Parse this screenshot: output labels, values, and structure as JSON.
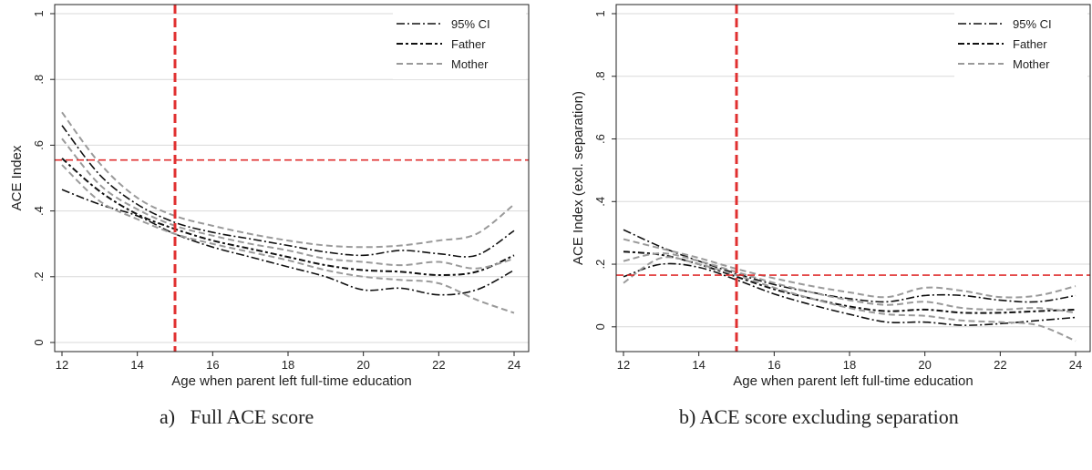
{
  "captions": [
    "a)   Full ACE score",
    "b) ACE score excluding separation"
  ],
  "legend_styles": {
    "95% CI": "dashdot",
    "Father": "dashdot-heavy",
    "Mother": "dashed"
  },
  "colors": {
    "black": "#111111",
    "gray": "#9a9a9a",
    "reference": "#e03030"
  },
  "chart_data": [
    {
      "type": "line",
      "xlabel": "Age when parent left full-time education",
      "ylabel": "ACE Index",
      "xlim": [
        12,
        24
      ],
      "ylim": [
        0,
        1
      ],
      "xticks": [
        12,
        14,
        16,
        18,
        20,
        22,
        24
      ],
      "xtick_labels": [
        "12",
        "14",
        "16",
        "18",
        "20",
        "22",
        "24"
      ],
      "yticks": [
        0,
        0.2,
        0.4,
        0.6,
        0.8,
        1
      ],
      "ytick_labels": [
        "0",
        ".2",
        ".4",
        ".6",
        ".8",
        "1"
      ],
      "grid": true,
      "legend": [
        "95% CI",
        "Father",
        "Mother"
      ],
      "legend_position": "top-right",
      "vline": 15,
      "hline": 0.555,
      "x": [
        12,
        13,
        14,
        15,
        16,
        17,
        18,
        19,
        20,
        21,
        22,
        23,
        24
      ],
      "series": [
        {
          "name": "Father",
          "style": "father",
          "values": [
            0.56,
            0.46,
            0.39,
            0.345,
            0.31,
            0.285,
            0.26,
            0.235,
            0.22,
            0.215,
            0.205,
            0.215,
            0.265
          ]
        },
        {
          "name": "95% CI",
          "style": "ci",
          "values": [
            0.66,
            0.51,
            0.42,
            0.365,
            0.335,
            0.315,
            0.295,
            0.275,
            0.265,
            0.28,
            0.27,
            0.265,
            0.34
          ]
        },
        {
          "name": "95% CI",
          "style": "ci",
          "values": [
            0.465,
            0.42,
            0.385,
            0.33,
            0.29,
            0.26,
            0.23,
            0.2,
            0.16,
            0.165,
            0.145,
            0.16,
            0.22
          ]
        },
        {
          "name": "Mother",
          "style": "mother",
          "values": [
            0.62,
            0.48,
            0.405,
            0.355,
            0.325,
            0.3,
            0.28,
            0.255,
            0.245,
            0.235,
            0.245,
            0.225,
            0.255
          ]
        },
        {
          "name": "95% CI",
          "style": "mother",
          "values": [
            0.7,
            0.545,
            0.44,
            0.385,
            0.355,
            0.33,
            0.31,
            0.295,
            0.29,
            0.295,
            0.31,
            0.33,
            0.42
          ]
        },
        {
          "name": "95% CI",
          "style": "mother",
          "values": [
            0.54,
            0.43,
            0.375,
            0.33,
            0.3,
            0.275,
            0.25,
            0.22,
            0.2,
            0.19,
            0.18,
            0.13,
            0.09
          ]
        }
      ]
    },
    {
      "type": "line",
      "xlabel": "Age when parent left full-time education",
      "ylabel": "ACE Index (excl. separation)",
      "xlim": [
        12,
        24
      ],
      "ylim": [
        -0.05,
        1
      ],
      "xticks": [
        12,
        14,
        16,
        18,
        20,
        22,
        24
      ],
      "xtick_labels": [
        "12",
        "14",
        "16",
        "18",
        "20",
        "22",
        "24"
      ],
      "yticks": [
        0,
        0.2,
        0.4,
        0.6,
        0.8,
        1
      ],
      "ytick_labels": [
        "0",
        ".2",
        ".4",
        ".6",
        ".8",
        "1"
      ],
      "grid": true,
      "legend": [
        "95% CI",
        "Father",
        "Mother"
      ],
      "legend_position": "top-right",
      "vline": 15,
      "hline": 0.165,
      "x": [
        12,
        13,
        14,
        15,
        16,
        17,
        18,
        19,
        20,
        21,
        22,
        23,
        24
      ],
      "series": [
        {
          "name": "Father",
          "style": "father",
          "values": [
            0.24,
            0.23,
            0.2,
            0.16,
            0.12,
            0.09,
            0.065,
            0.05,
            0.055,
            0.045,
            0.045,
            0.05,
            0.055
          ]
        },
        {
          "name": "95% CI",
          "style": "ci",
          "values": [
            0.31,
            0.255,
            0.21,
            0.17,
            0.135,
            0.11,
            0.09,
            0.08,
            0.1,
            0.1,
            0.085,
            0.08,
            0.1
          ]
        },
        {
          "name": "95% CI",
          "style": "ci",
          "values": [
            0.16,
            0.2,
            0.19,
            0.15,
            0.105,
            0.07,
            0.04,
            0.015,
            0.015,
            0.005,
            0.01,
            0.02,
            0.03
          ]
        },
        {
          "name": "Mother",
          "style": "mother",
          "values": [
            0.21,
            0.235,
            0.21,
            0.175,
            0.14,
            0.11,
            0.085,
            0.07,
            0.08,
            0.06,
            0.055,
            0.06,
            0.045
          ]
        },
        {
          "name": "95% CI",
          "style": "mother",
          "values": [
            0.28,
            0.25,
            0.22,
            0.185,
            0.155,
            0.13,
            0.11,
            0.095,
            0.125,
            0.115,
            0.095,
            0.1,
            0.13
          ]
        },
        {
          "name": "95% CI",
          "style": "mother",
          "values": [
            0.14,
            0.22,
            0.2,
            0.165,
            0.125,
            0.09,
            0.06,
            0.04,
            0.035,
            0.02,
            0.015,
            0.005,
            -0.045
          ]
        }
      ]
    }
  ]
}
